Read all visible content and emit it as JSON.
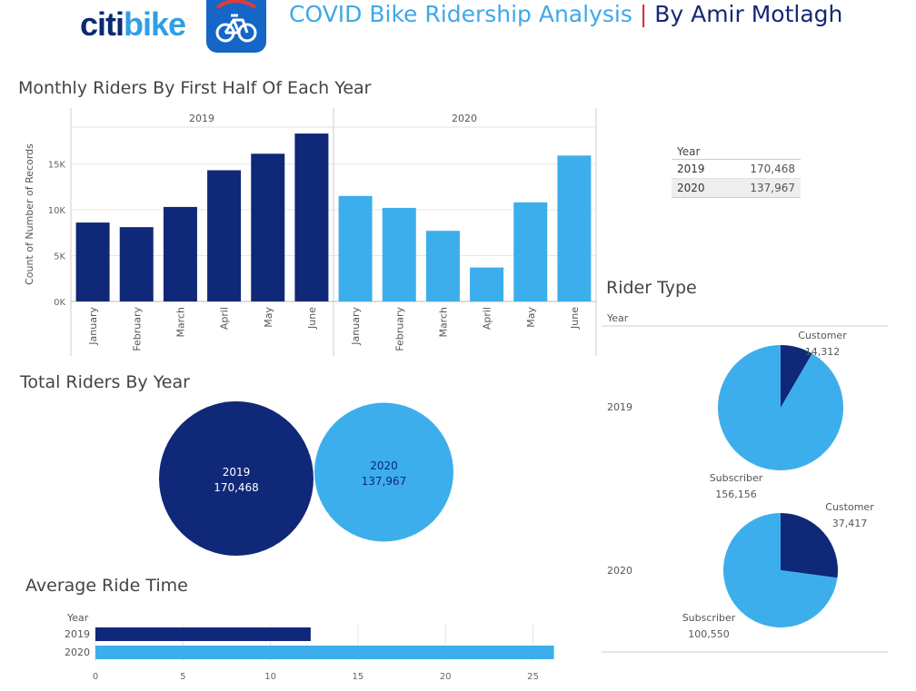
{
  "header": {
    "logo_citi": "citi",
    "logo_bike": "bike",
    "app_icon": "bike-app-icon",
    "title_main": "COVID Bike Ridership Analysis",
    "title_sep": "|",
    "title_author": "By Amir Motlagh"
  },
  "colors": {
    "y2019": "#0f2878",
    "y2020": "#3daeec",
    "grid": "#e6e6e6"
  },
  "sections": {
    "monthly": "Monthly Riders By First Half Of Each Year",
    "total": "Total Riders By Year",
    "rider_type": "Rider Type",
    "avg": "Average Ride Time"
  },
  "year_table": {
    "header": "Year",
    "rows": [
      {
        "year": "2019",
        "value": "170,468"
      },
      {
        "year": "2020",
        "value": "137,967"
      }
    ]
  },
  "chart_data": [
    {
      "type": "bar",
      "title": "Monthly Riders By First Half Of Each Year",
      "ylabel": "Count of Number of Records",
      "ylim": [
        0,
        19000
      ],
      "yticks": [
        0,
        5000,
        10000,
        15000
      ],
      "ytick_labels": [
        "0K",
        "5K",
        "10K",
        "15K"
      ],
      "panels": [
        "2019",
        "2020"
      ],
      "categories": [
        "January",
        "February",
        "March",
        "April",
        "May",
        "June"
      ],
      "series": [
        {
          "name": "2019",
          "values": [
            8600,
            8100,
            10300,
            14300,
            16100,
            18300
          ]
        },
        {
          "name": "2020",
          "values": [
            11500,
            10200,
            7700,
            3700,
            10800,
            15900
          ]
        }
      ]
    },
    {
      "type": "bubble",
      "title": "Total Riders By Year",
      "items": [
        {
          "label": "2019",
          "value": 170468,
          "value_label": "170,468"
        },
        {
          "label": "2020",
          "value": 137967,
          "value_label": "137,967"
        }
      ]
    },
    {
      "type": "pie",
      "title": "Rider Type",
      "header": "Year",
      "pies": [
        {
          "year": "2019",
          "slices": [
            {
              "name": "Customer",
              "value": 14312,
              "value_label": "14,312"
            },
            {
              "name": "Subscriber",
              "value": 156156,
              "value_label": "156,156"
            }
          ]
        },
        {
          "year": "2020",
          "slices": [
            {
              "name": "Customer",
              "value": 37417,
              "value_label": "37,417"
            },
            {
              "name": "Subscriber",
              "value": 100550,
              "value_label": "100,550"
            }
          ]
        }
      ]
    },
    {
      "type": "bar",
      "orientation": "horizontal",
      "title": "Average Ride Time",
      "header": "Year",
      "categories": [
        "2019",
        "2020"
      ],
      "values": [
        12.3,
        26.2
      ],
      "xlim": [
        0,
        27
      ],
      "xticks": [
        0,
        5,
        10,
        15,
        20,
        25
      ]
    }
  ]
}
